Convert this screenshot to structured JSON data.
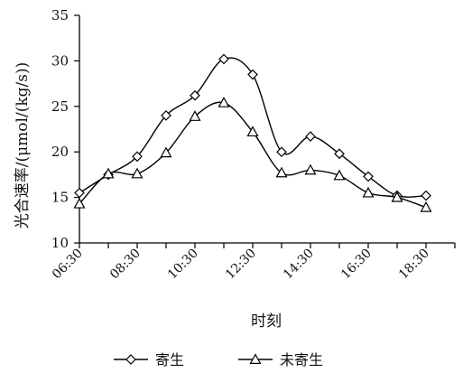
{
  "chart_data": {
    "type": "line",
    "title": "",
    "xlabel": "时刻",
    "ylabel": "光合速率/(μmol/(kg/s))",
    "ylim": [
      10,
      35
    ],
    "yticks": [
      10,
      15,
      20,
      25,
      30,
      35
    ],
    "xticks": [
      "06:30",
      "08:30",
      "10:30",
      "12:30",
      "14:30",
      "16:30",
      "18:30"
    ],
    "x": [
      "06:30",
      "07:30",
      "08:30",
      "09:30",
      "10:30",
      "11:30",
      "12:30",
      "13:30",
      "14:30",
      "15:30",
      "16:30",
      "17:30",
      "18:30",
      "19:30"
    ],
    "grid": false,
    "legend": "bottom",
    "series": [
      {
        "name": "寄生",
        "marker": "diamond",
        "values": [
          15.5,
          17.5,
          19.5,
          24.0,
          26.2,
          30.2,
          28.5,
          20.0,
          21.7,
          19.8,
          17.3,
          15.2,
          15.2,
          null
        ]
      },
      {
        "name": "未寄生",
        "marker": "triangle",
        "values": [
          14.3,
          17.6,
          17.6,
          19.9,
          23.9,
          25.4,
          22.2,
          17.7,
          18.0,
          17.4,
          15.5,
          15.0,
          13.9,
          null
        ]
      }
    ]
  }
}
